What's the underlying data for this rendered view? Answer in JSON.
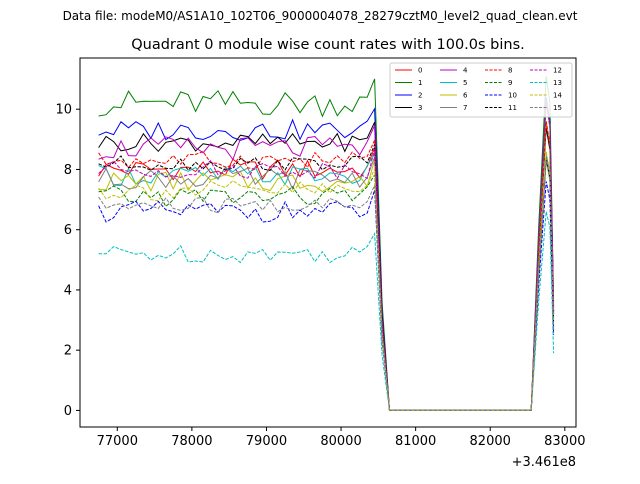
{
  "chart_data": {
    "type": "line",
    "suptitle": "Data file: modeM0/AS1A10_102T06_9000004078_28279cztM0_level2_quad_clean.evt",
    "title": "Quadrant 0 module wise count rates with 100.0s bins.",
    "xlabel": "",
    "ylabel": "",
    "x_offset_label": "+3.461e8",
    "xlim": [
      76500,
      83150
    ],
    "ylim": [
      -0.55,
      11.7
    ],
    "x_ticks": [
      77000,
      78000,
      79000,
      80000,
      81000,
      82000,
      83000
    ],
    "x_tick_labels": [
      "77000",
      "78000",
      "79000",
      "80000",
      "81000",
      "82000",
      "83000"
    ],
    "y_ticks": [
      0,
      2,
      4,
      6,
      8,
      10
    ],
    "y_tick_labels": [
      "0",
      "2",
      "4",
      "6",
      "8",
      "10"
    ],
    "legend_position": "top-right",
    "legend_columns": 4,
    "segment_a": {
      "x_start": 76750,
      "x_end": 80450,
      "step": 100
    },
    "drop": {
      "x_start": 80550,
      "x_end": 80650
    },
    "segment_b": {
      "x_start": 82750,
      "x_end": 82850
    },
    "series": [
      {
        "name": "0",
        "color": "#ff0000",
        "dash": "solid",
        "base": 8.0,
        "amp": 0.35,
        "peak": 9.5,
        "b_end": 3.2
      },
      {
        "name": "1",
        "color": "#008000",
        "dash": "solid",
        "base": 10.2,
        "amp": 0.45,
        "peak": 11.1,
        "b_end": 3.6
      },
      {
        "name": "2",
        "color": "#0000ff",
        "dash": "solid",
        "base": 9.3,
        "amp": 0.35,
        "peak": 10.4,
        "b_end": 3.4
      },
      {
        "name": "3",
        "color": "#000000",
        "dash": "solid",
        "base": 8.9,
        "amp": 0.3,
        "peak": 9.4,
        "b_end": 3.3
      },
      {
        "name": "4",
        "color": "#bf00bf",
        "dash": "solid",
        "base": 8.7,
        "amp": 0.4,
        "peak": 10.3,
        "b_end": 3.5
      },
      {
        "name": "5",
        "color": "#00bfbf",
        "dash": "solid",
        "base": 7.8,
        "amp": 0.35,
        "peak": 8.5,
        "b_end": 2.8
      },
      {
        "name": "6",
        "color": "#bfbf00",
        "dash": "solid",
        "base": 7.6,
        "amp": 0.35,
        "peak": 9.6,
        "b_end": 3.1
      },
      {
        "name": "7",
        "color": "#808080",
        "dash": "solid",
        "base": 7.7,
        "amp": 0.35,
        "peak": 8.3,
        "b_end": 2.7
      },
      {
        "name": "8",
        "color": "#ff0000",
        "dash": "dashed",
        "base": 8.3,
        "amp": 0.3,
        "peak": 9.6,
        "b_end": 3.2
      },
      {
        "name": "9",
        "color": "#008000",
        "dash": "dashed",
        "base": 7.1,
        "amp": 0.35,
        "peak": 10.2,
        "b_end": 3.0
      },
      {
        "name": "10",
        "color": "#0000ff",
        "dash": "dashed",
        "base": 6.6,
        "amp": 0.35,
        "peak": 7.6,
        "b_end": 2.5
      },
      {
        "name": "11",
        "color": "#000000",
        "dash": "dashed",
        "base": 8.2,
        "amp": 0.25,
        "peak": 8.4,
        "b_end": 2.9
      },
      {
        "name": "12",
        "color": "#bf00bf",
        "dash": "dashed",
        "base": 8.0,
        "amp": 0.3,
        "peak": 10.3,
        "b_end": 3.3
      },
      {
        "name": "13",
        "color": "#00bfbf",
        "dash": "dashed",
        "base": 5.2,
        "amp": 0.3,
        "peak": 6.6,
        "b_end": 1.9
      },
      {
        "name": "14",
        "color": "#bfbf00",
        "dash": "dashed",
        "base": 7.3,
        "amp": 0.35,
        "peak": 8.6,
        "b_end": 2.9
      },
      {
        "name": "15",
        "color": "#808080",
        "dash": "dashed",
        "base": 6.8,
        "amp": 0.3,
        "peak": 8.4,
        "b_end": 2.7
      }
    ]
  }
}
